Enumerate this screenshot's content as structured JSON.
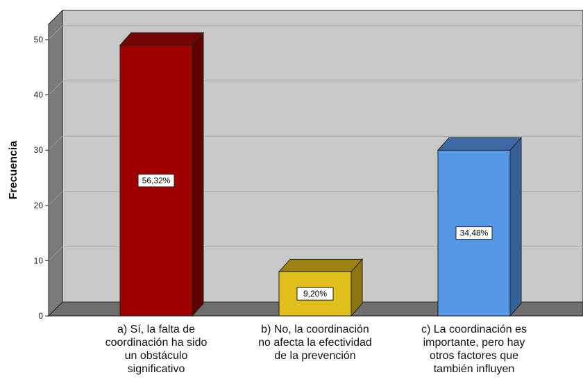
{
  "chart_data": {
    "type": "bar",
    "ylabel": "Frecuencia",
    "ylim": [
      0,
      50
    ],
    "yticks": [
      "0",
      "10",
      "20",
      "30",
      "40",
      "50"
    ],
    "grid": true,
    "categories": [
      [
        "a) Sí, la falta de",
        "coordinación ha sido",
        "un obstáculo",
        "significativo"
      ],
      [
        "b) No, la coordinación",
        "no afecta la efectividad",
        "de la prevención"
      ],
      [
        "c) La coordinación es",
        "importante, pero hay",
        "otros factores que",
        "también influyen"
      ]
    ],
    "values": [
      49,
      8,
      30
    ],
    "data_labels": [
      "56,32%",
      "9,20%",
      "34,48%"
    ],
    "colors": [
      "#a00000",
      "#e0be1c",
      "#5598e6"
    ],
    "side_colors": [
      "#5e0000",
      "#8d7610",
      "#35609a"
    ],
    "top_colors": [
      "#720505",
      "#9d8212",
      "#3e69a6"
    ]
  }
}
